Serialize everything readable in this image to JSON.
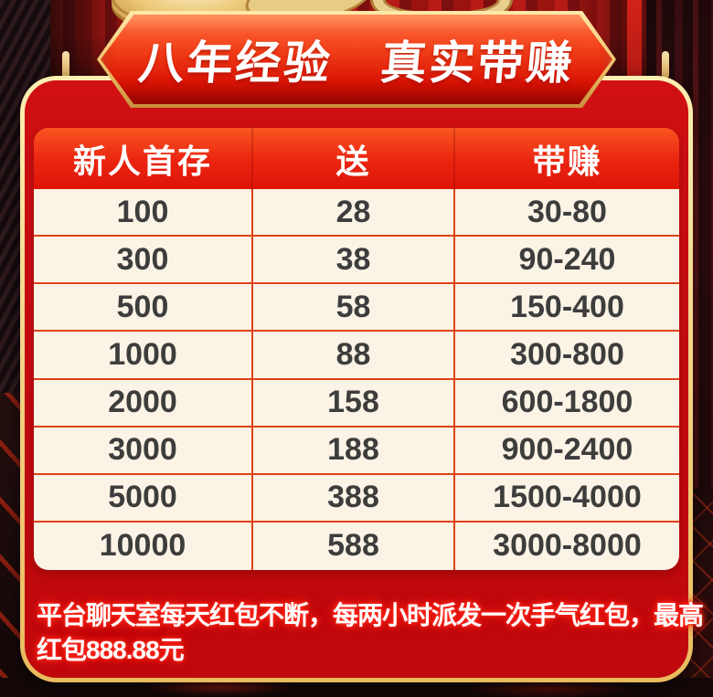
{
  "banner": {
    "title": "八年经验　真实带赚"
  },
  "table": {
    "headers": [
      "新人首存",
      "送",
      "带赚"
    ],
    "rows": [
      [
        "100",
        "28",
        "30-80"
      ],
      [
        "300",
        "38",
        "90-240"
      ],
      [
        "500",
        "58",
        "150-400"
      ],
      [
        "1000",
        "88",
        "300-800"
      ],
      [
        "2000",
        "158",
        "600-1800"
      ],
      [
        "3000",
        "188",
        "900-2400"
      ],
      [
        "5000",
        "388",
        "1500-4000"
      ],
      [
        "10000",
        "588",
        "3000-8000"
      ]
    ]
  },
  "footer": {
    "lines": [
      "平台聊天室每天红包不断，每两小时派发一次手气红包，最高",
      "红包888.88元"
    ]
  },
  "colors": {
    "panel_red": "#c20a0e",
    "gold_border": "#f3d488",
    "header_orange_top": "#fa5520",
    "header_red_bottom": "#dd1408",
    "badge_red_top": "#ff7342",
    "badge_red_bottom": "#c90e03",
    "table_bg": "#fbf3e5",
    "table_border": "#e0411a",
    "cell_text": "#3d3d3d",
    "footer_glow": "#ff2b1e"
  }
}
